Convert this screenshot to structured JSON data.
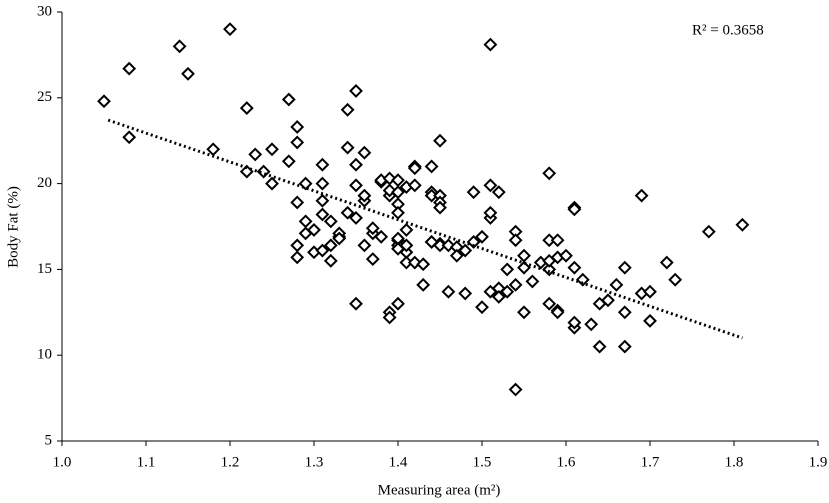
{
  "chart_data": {
    "type": "scatter",
    "x_label": "Measuring area (m²)",
    "y_label": "Body Fat (%)",
    "annotation": "R² = 0.3658",
    "xlim": [
      1.0,
      1.9
    ],
    "ylim": [
      5,
      30
    ],
    "xticks": [
      {
        "value": 1.0,
        "label": "1.0"
      },
      1.1,
      1.2,
      1.3,
      1.4,
      1.5,
      1.6,
      1.7,
      1.8,
      1.9
    ],
    "yticks": [
      5,
      10,
      15,
      20,
      25,
      30
    ],
    "marker_color": "#000000",
    "trendline_color": "#000000",
    "trendline": {
      "x": [
        1.055,
        1.81
      ],
      "y": [
        23.7,
        11.0
      ]
    },
    "x": [
      1.05,
      1.08,
      1.14,
      1.15,
      1.08,
      1.2,
      1.18,
      1.22,
      1.22,
      1.24,
      1.27,
      1.23,
      1.25,
      1.25,
      1.28,
      1.28,
      1.27,
      1.29,
      1.28,
      1.29,
      1.28,
      1.3,
      1.29,
      1.31,
      1.31,
      1.31,
      1.31,
      1.32,
      1.32,
      1.33,
      1.31,
      1.28,
      1.3,
      1.34,
      1.34,
      1.35,
      1.35,
      1.36,
      1.35,
      1.35,
      1.36,
      1.36,
      1.34,
      1.33,
      1.33,
      1.32,
      1.35,
      1.36,
      1.37,
      1.37,
      1.38,
      1.38,
      1.39,
      1.39,
      1.39,
      1.4,
      1.4,
      1.4,
      1.4,
      1.41,
      1.42,
      1.42,
      1.42,
      1.41,
      1.4,
      1.38,
      1.37,
      1.39,
      1.39,
      1.4,
      1.4,
      1.4,
      1.41,
      1.4,
      1.41,
      1.41,
      1.42,
      1.43,
      1.44,
      1.44,
      1.44,
      1.45,
      1.45,
      1.45,
      1.45,
      1.44,
      1.45,
      1.45,
      1.44,
      1.46,
      1.47,
      1.47,
      1.48,
      1.49,
      1.5,
      1.51,
      1.51,
      1.49,
      1.51,
      1.52,
      1.51,
      1.43,
      1.46,
      1.48,
      1.5,
      1.51,
      1.52,
      1.52,
      1.53,
      1.54,
      1.54,
      1.53,
      1.54,
      1.55,
      1.55,
      1.54,
      1.55,
      1.56,
      1.57,
      1.58,
      1.58,
      1.58,
      1.58,
      1.59,
      1.59,
      1.6,
      1.58,
      1.59,
      1.59,
      1.61,
      1.61,
      1.61,
      1.61,
      1.61,
      1.63,
      1.62,
      1.64,
      1.64,
      1.65,
      1.66,
      1.67,
      1.67,
      1.67,
      1.69,
      1.7,
      1.7,
      1.69,
      1.72,
      1.73,
      1.77,
      1.81
    ],
    "values": [
      24.8,
      26.7,
      28.0,
      26.4,
      22.7,
      29.0,
      22.0,
      24.4,
      20.7,
      20.7,
      24.9,
      21.7,
      20.0,
      22.0,
      23.3,
      22.4,
      21.3,
      20.0,
      18.9,
      17.8,
      16.4,
      16.0,
      17.1,
      20.0,
      21.1,
      19.0,
      18.2,
      17.8,
      16.4,
      16.9,
      16.1,
      15.7,
      17.3,
      24.3,
      22.1,
      25.4,
      21.1,
      21.8,
      19.9,
      18.0,
      19.0,
      19.3,
      18.3,
      17.1,
      16.8,
      15.5,
      13.0,
      16.4,
      17.1,
      17.4,
      20.1,
      20.2,
      19.3,
      20.3,
      19.6,
      18.8,
      20.2,
      19.5,
      18.3,
      19.8,
      21.0,
      19.9,
      20.9,
      17.3,
      16.7,
      16.9,
      15.6,
      12.5,
      12.2,
      16.4,
      16.8,
      16.2,
      16.0,
      13.0,
      16.4,
      15.4,
      15.4,
      15.3,
      21.0,
      19.5,
      19.3,
      19.3,
      18.9,
      18.6,
      22.5,
      16.6,
      16.5,
      16.4,
      16.6,
      16.4,
      16.3,
      15.8,
      16.1,
      16.6,
      16.9,
      18.0,
      18.3,
      19.5,
      19.9,
      19.5,
      28.1,
      14.1,
      13.7,
      13.6,
      12.8,
      13.7,
      13.9,
      13.4,
      13.7,
      17.2,
      16.7,
      15.0,
      14.1,
      15.8,
      15.1,
      8.0,
      12.5,
      14.3,
      15.4,
      15.0,
      15.5,
      16.7,
      20.6,
      16.7,
      15.7,
      15.8,
      13.0,
      12.6,
      12.5,
      11.6,
      11.9,
      18.6,
      18.5,
      15.1,
      11.8,
      14.4,
      10.5,
      13.0,
      13.2,
      14.1,
      15.1,
      12.5,
      10.5,
      13.6,
      13.7,
      12.0,
      19.3,
      15.4,
      14.4,
      17.2,
      17.6
    ]
  }
}
